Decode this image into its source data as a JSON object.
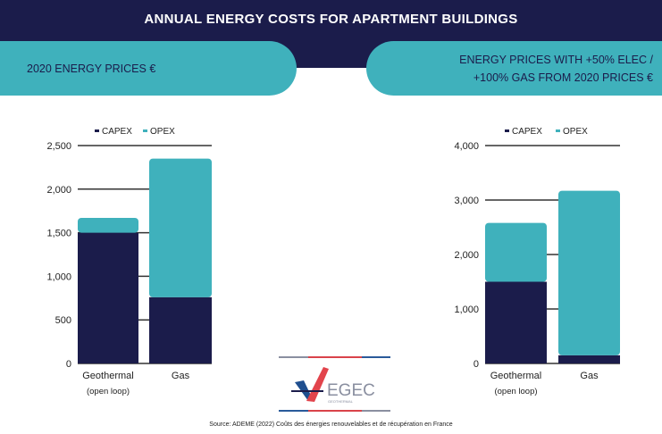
{
  "title": "ANNUAL ENERGY COSTS FOR APARTMENT BUILDINGS",
  "panels": {
    "left": "2020 ENERGY PRICES €",
    "right_line1": "ENERGY PRICES WITH +50% ELEC /",
    "right_line2": "+100% GAS FROM 2020 PRICES €"
  },
  "source": "Source: ADEME (2022) Coûts des énergies renouvelables et de récupération en France",
  "logo": {
    "name": "EGEC",
    "sub": "GEOTHERMAL"
  },
  "colors": {
    "capex": "#1b1c4b",
    "opex": "#3fb1bc"
  },
  "chart_data": [
    {
      "type": "bar",
      "stacked": true,
      "title": "2020 ENERGY PRICES €",
      "categories": [
        "Geothermal",
        "Gas"
      ],
      "category_sub": [
        "(open loop)",
        ""
      ],
      "series": [
        {
          "name": "CAPEX",
          "values": [
            1500,
            760
          ]
        },
        {
          "name": "OPEX",
          "values": [
            170,
            1590
          ]
        }
      ],
      "ylim": [
        0,
        2500
      ],
      "yticks": [
        0,
        500,
        1000,
        1500,
        2000,
        2500
      ],
      "ytick_labels": [
        "0",
        "500",
        "1,000",
        "1,500",
        "2,000",
        "2,500"
      ],
      "legend": "top"
    },
    {
      "type": "bar",
      "stacked": true,
      "title": "ENERGY PRICES WITH +50% ELEC / +100% GAS FROM 2020 PRICES €",
      "categories": [
        "Geothermal",
        "Gas"
      ],
      "category_sub": [
        "(open loop)",
        ""
      ],
      "series": [
        {
          "name": "CAPEX",
          "values": [
            1500,
            150
          ]
        },
        {
          "name": "OPEX",
          "values": [
            1080,
            3020
          ]
        }
      ],
      "ylim": [
        0,
        4000
      ],
      "yticks": [
        0,
        1000,
        2000,
        3000,
        4000
      ],
      "ytick_labels": [
        "0",
        "1,000",
        "2,000",
        "3,000",
        "4,000"
      ],
      "legend": "top"
    }
  ]
}
